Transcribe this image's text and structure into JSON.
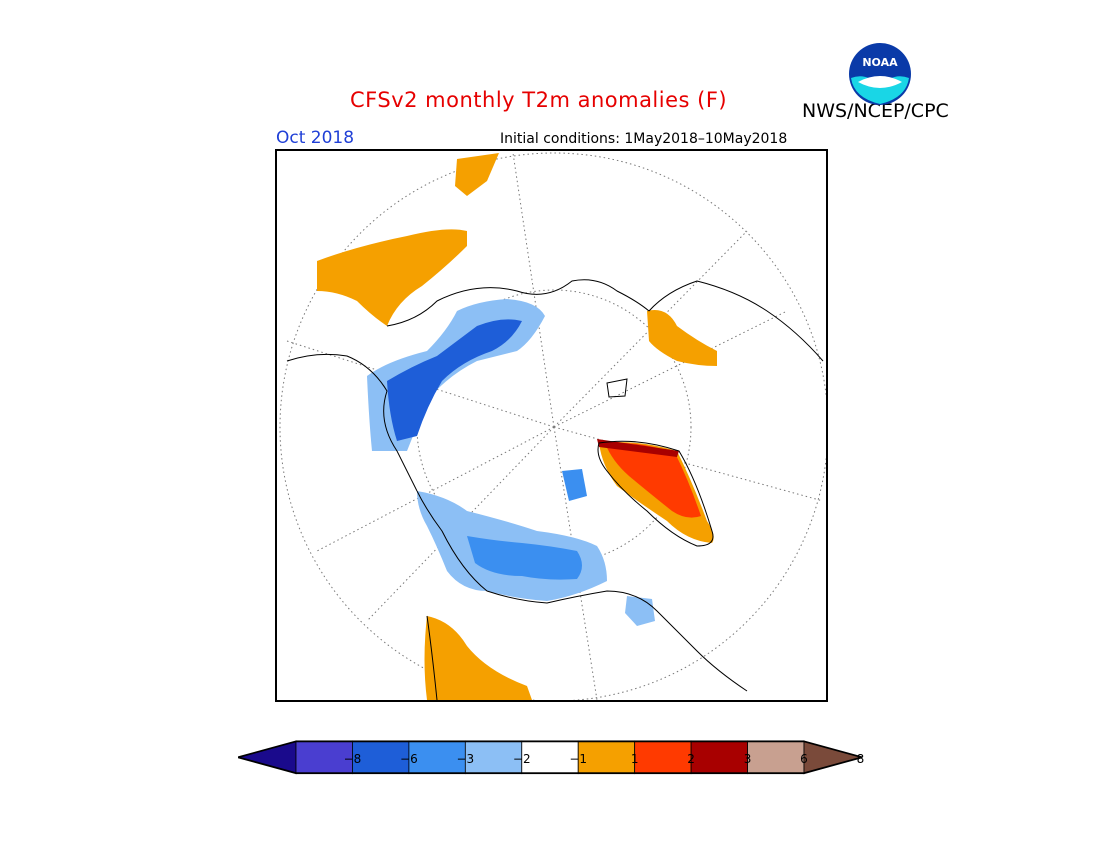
{
  "header": {
    "title": "CFSv2 monthly T2m anomalies (F)",
    "agency": "NWS/NCEP/CPC",
    "month": "Oct 2018",
    "initial_conditions": "Initial conditions: 1May2018–10May2018"
  },
  "logo": {
    "text": "NOAA"
  },
  "legend": {
    "bins": [
      {
        "color": "#1a0a8c"
      },
      {
        "color": "#4a3ed0"
      },
      {
        "color": "#1e5ed8"
      },
      {
        "color": "#3b8ff0"
      },
      {
        "color": "#8cbff5"
      },
      {
        "color": "#ffffff"
      },
      {
        "color": "#f5a000"
      },
      {
        "color": "#ff3a00"
      },
      {
        "color": "#a80000"
      },
      {
        "color": "#c8a090"
      },
      {
        "color": "#7a4a3a"
      }
    ],
    "ticks": [
      "−8",
      "−6",
      "−3",
      "−2",
      "−1",
      "1",
      "2",
      "3",
      "6",
      "8"
    ]
  }
}
